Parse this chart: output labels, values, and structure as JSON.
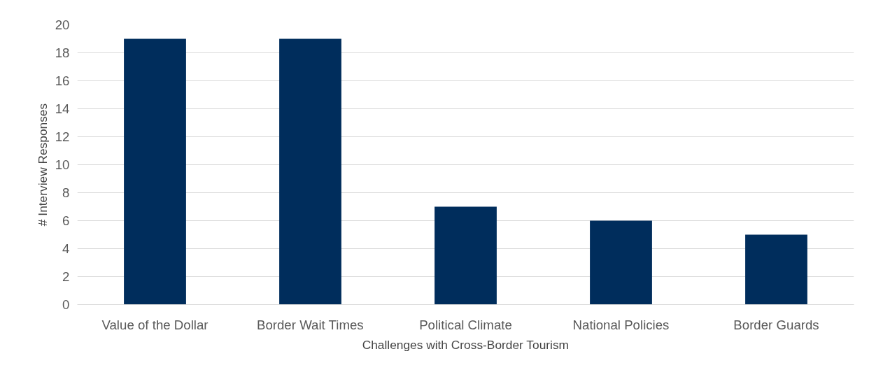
{
  "chart_data": {
    "type": "bar",
    "xlabel": "Challenges with Cross-Border Tourism",
    "ylabel": "# Interview Responses",
    "categories": [
      "Value of the Dollar",
      "Border Wait Times",
      "Political Climate",
      "National Policies",
      "Border Guards"
    ],
    "values": [
      19,
      19,
      7,
      6,
      5
    ],
    "color": "#002d5c",
    "ylim": [
      0,
      20
    ],
    "yticks": [
      0,
      2,
      4,
      6,
      8,
      10,
      12,
      14,
      16,
      18,
      20
    ],
    "grid": "y"
  }
}
